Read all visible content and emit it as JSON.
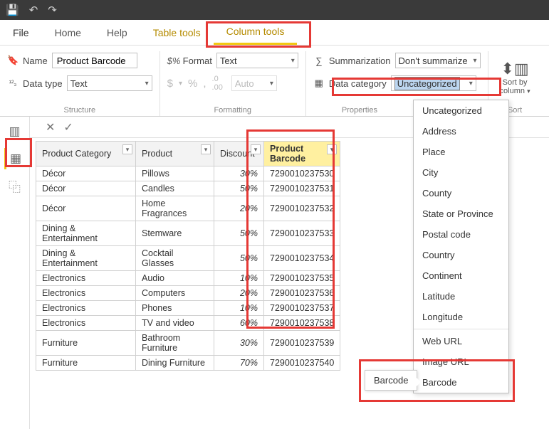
{
  "titlebar": {
    "save": "💾",
    "undo": "↶",
    "redo": "↷"
  },
  "tabs": {
    "file": "File",
    "home": "Home",
    "help": "Help",
    "tabletools": "Table tools",
    "columntools": "Column tools"
  },
  "ribbon": {
    "structure": {
      "name_label": "Name",
      "name_value": "Product Barcode",
      "datatype_label": "Data type",
      "datatype_value": "Text",
      "group": "Structure"
    },
    "formatting": {
      "format_label": "Format",
      "format_value": "Text",
      "auto": "Auto",
      "group": "Formatting"
    },
    "properties": {
      "summarization_label": "Summarization",
      "summarization_value": "Don't summarize",
      "datacategory_label": "Data category",
      "datacategory_value": "Uncategorized",
      "group": "Properties"
    },
    "sort": {
      "label1": "Sort by",
      "label2": "column",
      "group": "Sort"
    }
  },
  "table": {
    "columns": [
      "Product Category",
      "Product",
      "Discount",
      "Product Barcode"
    ],
    "selected_col_index": 3,
    "rows": [
      [
        "Décor",
        "Pillows",
        "30%",
        "7290010237530"
      ],
      [
        "Décor",
        "Candles",
        "50%",
        "7290010237531"
      ],
      [
        "Décor",
        "Home Fragrances",
        "20%",
        "7290010237532"
      ],
      [
        "Dining & Entertainment",
        "Stemware",
        "50%",
        "7290010237533"
      ],
      [
        "Dining & Entertainment",
        "Cocktail Glasses",
        "50%",
        "7290010237534"
      ],
      [
        "Electronics",
        "Audio",
        "10%",
        "7290010237535"
      ],
      [
        "Electronics",
        "Computers",
        "20%",
        "7290010237536"
      ],
      [
        "Electronics",
        "Phones",
        "10%",
        "7290010237537"
      ],
      [
        "Electronics",
        "TV and video",
        "60%",
        "7290010237538"
      ],
      [
        "Furniture",
        "Bathroom Furniture",
        "30%",
        "7290010237539"
      ],
      [
        "Furniture",
        "Dining Furniture",
        "70%",
        "7290010237540"
      ]
    ]
  },
  "dropdown": {
    "items": [
      "Uncategorized",
      "Address",
      "Place",
      "City",
      "County",
      "State or Province",
      "Postal code",
      "Country",
      "Continent",
      "Latitude",
      "Longitude"
    ],
    "items2": [
      "Web URL",
      "Image URL",
      "Barcode"
    ]
  },
  "tooltip": "Barcode",
  "colors": {
    "accent": "#f2c811",
    "highlight": "#e53935"
  }
}
